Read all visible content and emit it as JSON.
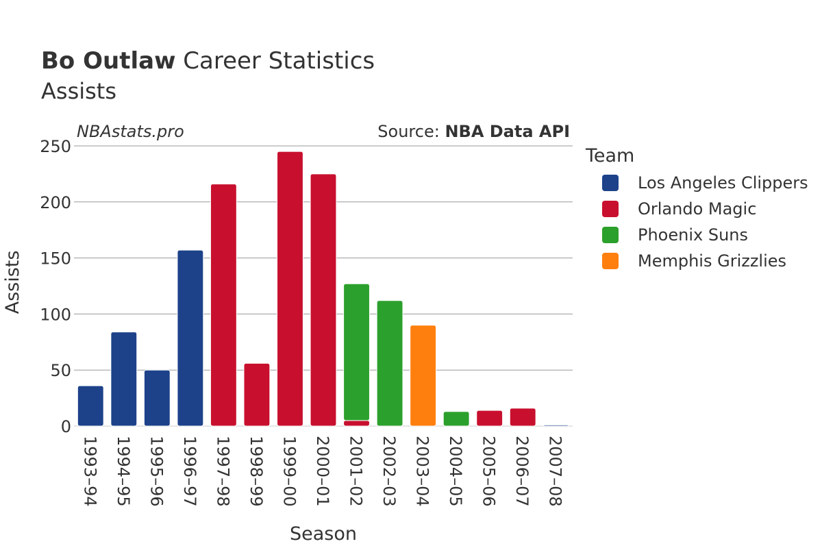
{
  "header": {
    "title_bold": "Bo Outlaw",
    "title_rest": " Career Statistics",
    "subtitle": "Assists"
  },
  "watermark": "NBAstats.pro",
  "source": {
    "prefix": "Source: ",
    "name": "NBA Data API"
  },
  "legend": {
    "title": "Team",
    "placement": "right",
    "items": [
      {
        "label": "Los Angeles Clippers",
        "color": "#1d428a"
      },
      {
        "label": "Orlando Magic",
        "color": "#c8102e"
      },
      {
        "label": "Phoenix Suns",
        "color": "#2ca02c"
      },
      {
        "label": "Memphis Grizzlies",
        "color": "#ff7f0e"
      }
    ]
  },
  "chart_data": {
    "type": "bar",
    "stacked": true,
    "xlabel": "Season",
    "ylabel": "Assists",
    "ylim": [
      0,
      250
    ],
    "yticks": [
      0,
      50,
      100,
      150,
      200,
      250
    ],
    "grid": true,
    "categories": [
      "1993–94",
      "1994–95",
      "1995–96",
      "1996–97",
      "1997–98",
      "1998–99",
      "1999–00",
      "2000–01",
      "2001–02",
      "2002–03",
      "2003–04",
      "2004–05",
      "2005–06",
      "2006–07",
      "2007–08"
    ],
    "series": [
      {
        "name": "Los Angeles Clippers",
        "color": "#1d428a",
        "values": [
          36,
          84,
          50,
          157,
          0,
          0,
          0,
          0,
          0,
          0,
          0,
          0,
          0,
          0,
          1
        ]
      },
      {
        "name": "Orlando Magic",
        "color": "#c8102e",
        "values": [
          0,
          0,
          0,
          0,
          216,
          56,
          245,
          225,
          5,
          0,
          0,
          0,
          14,
          16,
          0
        ]
      },
      {
        "name": "Phoenix Suns",
        "color": "#2ca02c",
        "values": [
          0,
          0,
          0,
          0,
          0,
          0,
          0,
          0,
          122,
          112,
          0,
          13,
          0,
          0,
          0
        ]
      },
      {
        "name": "Memphis Grizzlies",
        "color": "#ff7f0e",
        "values": [
          0,
          0,
          0,
          0,
          0,
          0,
          0,
          0,
          0,
          0,
          90,
          0,
          0,
          0,
          0
        ]
      }
    ]
  }
}
